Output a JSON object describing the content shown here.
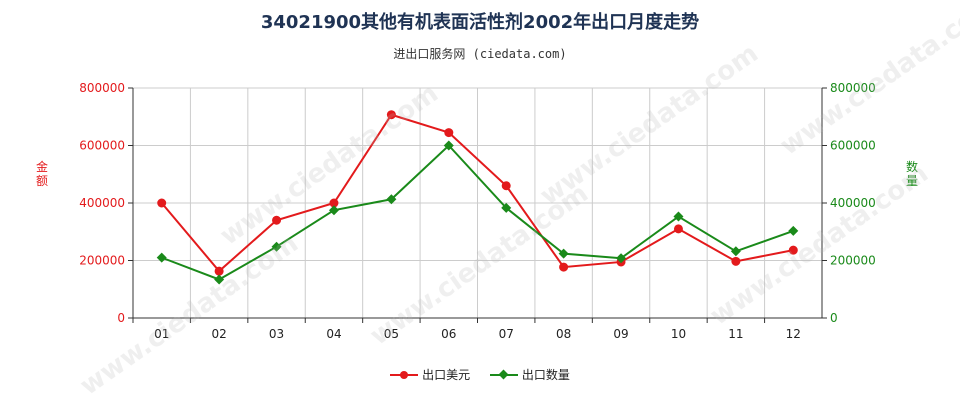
{
  "title": "34021900其他有机表面活性剂2002年出口月度走势",
  "subtitle": "进出口服务网 (ciedata.com)",
  "watermark": "www.ciedata.com",
  "colors": {
    "export_value": "#e31a1c",
    "export_qty": "#1a8a1a",
    "grid": "#cccccc",
    "axis": "#333333"
  },
  "chart_data": {
    "type": "line",
    "categories": [
      "01",
      "02",
      "03",
      "04",
      "05",
      "06",
      "07",
      "08",
      "09",
      "10",
      "11",
      "12"
    ],
    "ylabel_left": "金额",
    "ylabel_right": "数量",
    "ylim": [
      0,
      800000
    ],
    "yticks_left": [
      "0",
      "200000",
      "400000",
      "600000",
      "800000"
    ],
    "yticks_right": [
      "0",
      "200000",
      "400000",
      "600000",
      "800000"
    ],
    "series": [
      {
        "name": "出口美元",
        "color": "#e31a1c",
        "marker": "circle",
        "axis": "left",
        "values": [
          400000,
          163000,
          340000,
          400000,
          707000,
          645000,
          460000,
          177000,
          195000,
          310000,
          197000,
          236000
        ]
      },
      {
        "name": "出口数量",
        "color": "#1a8a1a",
        "marker": "diamond",
        "axis": "right",
        "values": [
          210000,
          134000,
          248000,
          375000,
          413000,
          600000,
          383000,
          224000,
          208000,
          353000,
          232000,
          303000
        ]
      }
    ],
    "grid": true,
    "legend": "bottom"
  }
}
